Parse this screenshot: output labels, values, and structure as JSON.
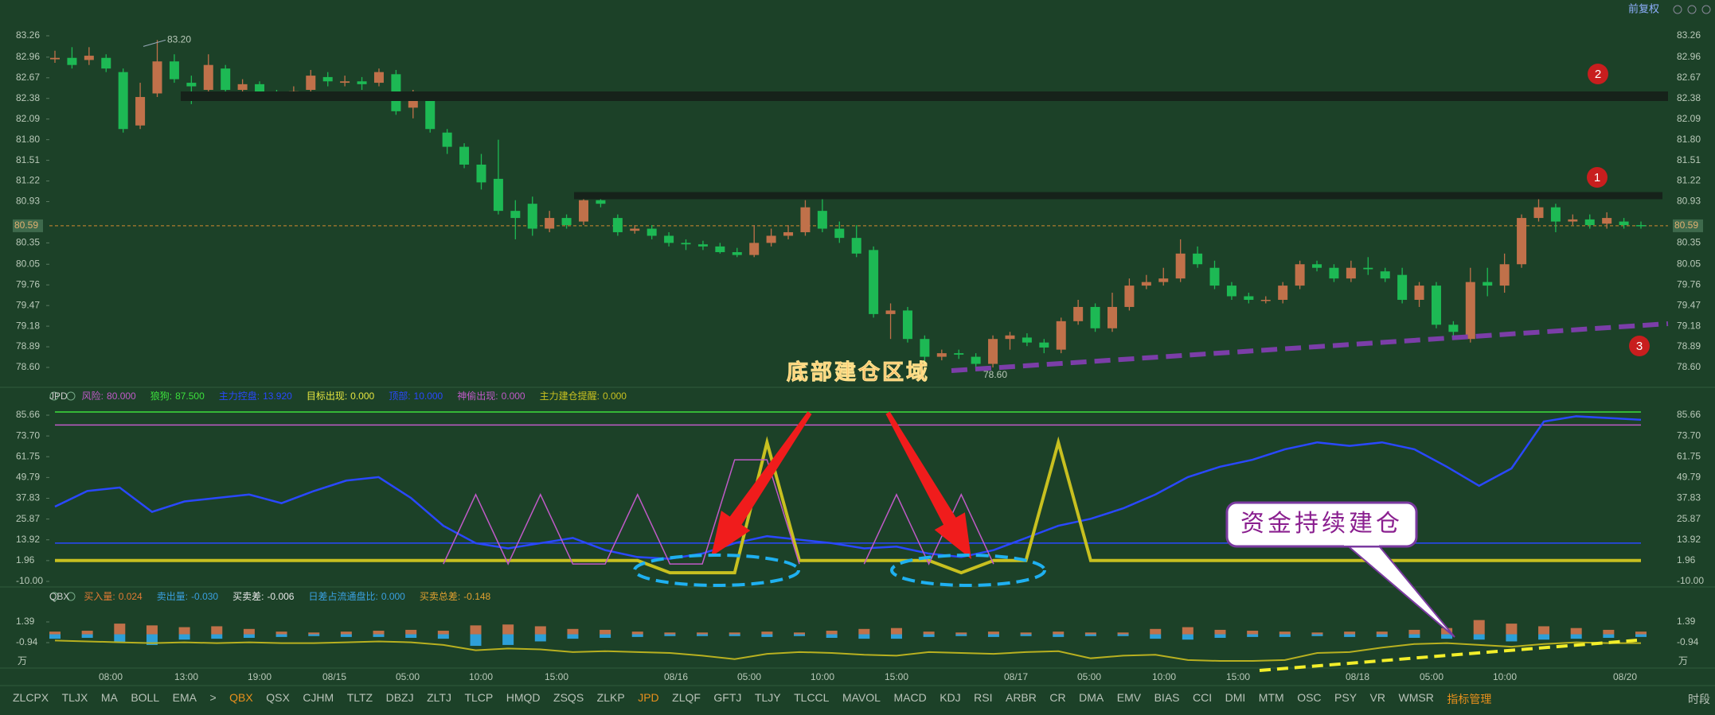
{
  "top_bar": {
    "adjust": "前复权"
  },
  "price_panel": {
    "ylim": [
      78.6,
      83.26
    ],
    "yticks": [
      83.26,
      82.96,
      82.67,
      82.38,
      82.09,
      {
        "value": 81.8,
        "label": "81.80"
      },
      81.51,
      81.22,
      80.93,
      80.35,
      80.05,
      79.76,
      79.47,
      79.18,
      78.89,
      {
        "value": 78.6,
        "label": "78.60"
      }
    ],
    "current_price": 80.59,
    "high_label": {
      "value": 83.2,
      "label": "83.20"
    },
    "low_label": {
      "value": 78.6,
      "label": "78.60"
    },
    "up_color": "#c0714a",
    "down_color": "#1db954",
    "candles": [
      [
        82.93,
        82.95,
        83.05,
        82.88
      ],
      [
        82.95,
        82.85,
        83.1,
        82.8
      ],
      [
        82.92,
        82.98,
        83.1,
        82.85
      ],
      [
        82.95,
        82.8,
        83.0,
        82.75
      ],
      [
        82.75,
        81.95,
        82.8,
        81.9
      ],
      [
        82.0,
        82.4,
        82.6,
        81.95
      ],
      [
        82.45,
        82.9,
        83.2,
        82.4
      ],
      [
        82.9,
        82.65,
        83.0,
        82.6
      ],
      [
        82.6,
        82.55,
        82.7,
        82.3
      ],
      [
        82.5,
        82.85,
        83.0,
        82.4
      ],
      [
        82.8,
        82.5,
        82.85,
        82.4
      ],
      [
        82.5,
        82.58,
        82.65,
        82.45
      ],
      [
        82.58,
        82.45,
        82.62,
        82.38
      ],
      [
        82.42,
        82.4,
        82.5,
        82.35
      ],
      [
        82.4,
        82.48,
        82.55,
        82.35
      ],
      [
        82.5,
        82.7,
        82.78,
        82.45
      ],
      [
        82.68,
        82.62,
        82.75,
        82.55
      ],
      [
        82.6,
        82.62,
        82.7,
        82.55
      ],
      [
        82.62,
        82.58,
        82.68,
        82.5
      ],
      [
        82.6,
        82.75,
        82.8,
        82.55
      ],
      [
        82.72,
        82.2,
        82.78,
        82.15
      ],
      [
        82.25,
        82.4,
        82.5,
        82.1
      ],
      [
        82.4,
        81.95,
        82.45,
        81.9
      ],
      [
        81.9,
        81.7,
        81.95,
        81.6
      ],
      [
        81.7,
        81.45,
        81.75,
        81.4
      ],
      [
        81.45,
        81.2,
        81.6,
        81.1
      ],
      [
        81.25,
        80.8,
        81.8,
        80.75
      ],
      [
        80.8,
        80.7,
        80.95,
        80.4
      ],
      [
        80.9,
        80.55,
        81.0,
        80.45
      ],
      [
        80.55,
        80.7,
        80.8,
        80.5
      ],
      [
        80.7,
        80.6,
        80.75,
        80.55
      ],
      [
        80.65,
        80.95,
        81.0,
        80.6
      ],
      [
        80.95,
        80.9,
        81.0,
        80.85
      ],
      [
        80.7,
        80.5,
        80.75,
        80.45
      ],
      [
        80.52,
        80.55,
        80.6,
        80.48
      ],
      [
        80.55,
        80.45,
        80.6,
        80.4
      ],
      [
        80.45,
        80.35,
        80.5,
        80.3
      ],
      [
        80.35,
        80.33,
        80.4,
        80.25
      ],
      [
        80.33,
        80.3,
        80.38,
        80.25
      ],
      [
        80.3,
        80.22,
        80.35,
        80.2
      ],
      [
        80.22,
        80.18,
        80.28,
        80.15
      ],
      [
        80.18,
        80.35,
        80.6,
        80.15
      ],
      [
        80.35,
        80.45,
        80.55,
        80.3
      ],
      [
        80.45,
        80.5,
        80.6,
        80.4
      ],
      [
        80.5,
        80.85,
        80.95,
        80.45
      ],
      [
        80.8,
        80.55,
        80.98,
        80.5
      ],
      [
        80.55,
        80.42,
        80.65,
        80.35
      ],
      [
        80.42,
        80.2,
        80.6,
        80.15
      ],
      [
        80.25,
        79.35,
        80.3,
        79.3
      ],
      [
        79.35,
        79.4,
        79.5,
        79.0
      ],
      [
        79.4,
        79.0,
        79.45,
        78.95
      ],
      [
        79.0,
        78.75,
        79.05,
        78.68
      ],
      [
        78.75,
        78.8,
        78.85,
        78.7
      ],
      [
        78.8,
        78.78,
        78.85,
        78.72
      ],
      [
        78.75,
        78.65,
        78.8,
        78.6
      ],
      [
        78.65,
        79.0,
        79.05,
        78.6
      ],
      [
        79.0,
        79.05,
        79.1,
        78.85
      ],
      [
        79.02,
        78.95,
        79.08,
        78.9
      ],
      [
        78.95,
        78.88,
        79.0,
        78.8
      ],
      [
        78.85,
        79.25,
        79.3,
        78.8
      ],
      [
        79.25,
        79.45,
        79.55,
        79.2
      ],
      [
        79.45,
        79.15,
        79.5,
        79.1
      ],
      [
        79.15,
        79.45,
        79.65,
        79.1
      ],
      [
        79.45,
        79.75,
        79.85,
        79.4
      ],
      [
        79.75,
        79.8,
        79.9,
        79.7
      ],
      [
        79.8,
        79.85,
        80.0,
        79.75
      ],
      [
        79.85,
        80.2,
        80.4,
        79.8
      ],
      [
        80.2,
        80.05,
        80.3,
        80.0
      ],
      [
        80.0,
        79.75,
        80.1,
        79.7
      ],
      [
        79.75,
        79.6,
        79.8,
        79.55
      ],
      [
        79.6,
        79.55,
        79.65,
        79.5
      ],
      [
        79.55,
        79.55,
        79.6,
        79.5
      ],
      [
        79.55,
        79.75,
        79.8,
        79.5
      ],
      [
        79.75,
        80.05,
        80.1,
        79.7
      ],
      [
        80.05,
        80.0,
        80.1,
        79.95
      ],
      [
        80.0,
        79.85,
        80.05,
        79.8
      ],
      [
        79.85,
        80.0,
        80.1,
        79.8
      ],
      [
        80.0,
        79.98,
        80.15,
        79.9
      ],
      [
        79.95,
        79.85,
        80.0,
        79.8
      ],
      [
        79.9,
        79.55,
        80.0,
        79.5
      ],
      [
        79.55,
        79.75,
        79.8,
        79.45
      ],
      [
        79.75,
        79.2,
        79.8,
        79.15
      ],
      [
        79.2,
        79.1,
        79.25,
        79.0
      ],
      [
        79.0,
        79.8,
        80.0,
        78.95
      ],
      [
        79.8,
        79.75,
        80.0,
        79.6
      ],
      [
        79.75,
        80.05,
        80.2,
        79.65
      ],
      [
        80.05,
        80.7,
        80.75,
        80.0
      ],
      [
        80.7,
        80.85,
        81.0,
        80.65
      ],
      [
        80.85,
        80.65,
        80.9,
        80.5
      ],
      [
        80.65,
        80.68,
        80.75,
        80.6
      ],
      [
        80.68,
        80.6,
        80.75,
        80.55
      ],
      [
        80.62,
        80.7,
        80.78,
        80.55
      ],
      [
        80.65,
        80.6,
        80.7,
        80.55
      ],
      [
        80.6,
        80.59,
        80.65,
        80.55
      ]
    ]
  },
  "jpd_panel": {
    "name": "JPD",
    "ylim": [
      -10,
      85.66
    ],
    "yticks": [
      85.66,
      {
        "value": 73.7,
        "label": "73.70"
      },
      61.75,
      49.79,
      37.83,
      25.87,
      13.92,
      1.96,
      {
        "value": -10,
        "label": "-10.00"
      }
    ],
    "header": [
      {
        "name": "风险:",
        "value": "80.000",
        "color": "#c05ac8"
      },
      {
        "name": "狼狗:",
        "value": "87.500",
        "color": "#3ce03c"
      },
      {
        "name": "主力控盘:",
        "value": "13.920",
        "color": "#2a48ff"
      },
      {
        "name": "目标出现:",
        "value": "0.000",
        "color": "#e6e640"
      },
      {
        "name": "顶部:",
        "value": "10.000",
        "color": "#2a48ff"
      },
      {
        "name": "神偷出现:",
        "value": "0.000",
        "color": "#c05ac8"
      },
      {
        "name": "主力建仓提醒:",
        "value": "0.000",
        "color": "#c8c020"
      }
    ],
    "levels": [
      {
        "value": 87.5,
        "color": "#3ce03c"
      },
      {
        "value": 80,
        "color": "#c05ac8"
      },
      {
        "value": 12,
        "color": "#2a48ff"
      }
    ],
    "series": [
      {
        "color": "#2a48ff",
        "width": 2.5,
        "values": [
          33,
          42,
          44,
          30,
          36,
          38,
          40,
          35,
          42,
          48,
          50,
          38,
          22,
          12,
          9,
          12,
          15,
          8,
          4,
          3,
          6,
          12,
          16,
          14,
          12,
          9,
          10,
          6,
          4,
          8,
          15,
          22,
          26,
          32,
          40,
          50,
          56,
          60,
          66,
          70,
          68,
          70,
          66,
          56,
          45,
          55,
          82,
          85,
          84,
          83
        ]
      },
      {
        "color": "#c8c020",
        "width": 4,
        "values": [
          2,
          2,
          2,
          2,
          2,
          2,
          2,
          2,
          2,
          2,
          2,
          2,
          2,
          2,
          2,
          2,
          2,
          2,
          2,
          -5,
          -5,
          -5,
          70,
          2,
          2,
          2,
          2,
          2,
          -5,
          2,
          2,
          70,
          2,
          2,
          2,
          2,
          2,
          2,
          2,
          2,
          2,
          2,
          2,
          2,
          2,
          2,
          2,
          2,
          2,
          2
        ]
      },
      {
        "color": "#c05ac8",
        "width": 1.5,
        "values": [
          null,
          null,
          null,
          null,
          null,
          null,
          null,
          null,
          null,
          null,
          null,
          null,
          0,
          40,
          0,
          40,
          0,
          0,
          40,
          0,
          0,
          60,
          60,
          0,
          null,
          0,
          40,
          0,
          40,
          0,
          null,
          null,
          null,
          null,
          null,
          null,
          null,
          null,
          null,
          null,
          null,
          null,
          null,
          null,
          null,
          null,
          null,
          null,
          null,
          null
        ]
      }
    ]
  },
  "qbx_panel": {
    "name": "QBX",
    "ylim": [
      -3.4,
      1.8
    ],
    "yticks": [
      1.39,
      -0.94
    ],
    "unit": "万",
    "header": [
      {
        "name": "买入量:",
        "value": "0.024",
        "color": "#e07a34"
      },
      {
        "name": "卖出量:",
        "value": "-0.030",
        "color": "#3aa0e0"
      },
      {
        "name": "买卖差:",
        "value": "-0.006",
        "color": "#e8e8e8"
      },
      {
        "name": "日差占流通盘比:",
        "value": "0.000",
        "color": "#3aa0e0"
      },
      {
        "name": "买卖总差:",
        "value": "-0.148",
        "color": "#e0a030"
      }
    ],
    "buy": {
      "color": "#c0714a",
      "values": [
        0.3,
        0.4,
        1.2,
        1.0,
        0.8,
        0.9,
        0.6,
        0.3,
        0.2,
        0.3,
        0.4,
        0.5,
        0.4,
        1.0,
        1.1,
        0.9,
        0.6,
        0.5,
        0.3,
        0.2,
        0.2,
        0.2,
        0.3,
        0.2,
        0.4,
        0.6,
        0.7,
        0.3,
        0.2,
        0.3,
        0.2,
        0.3,
        0.2,
        0.2,
        0.6,
        0.8,
        0.5,
        0.4,
        0.3,
        0.2,
        0.3,
        0.3,
        0.5,
        0.7,
        1.6,
        1.2,
        0.9,
        0.7,
        0.5,
        0.3
      ]
    },
    "sell": {
      "color": "#2e9fd8",
      "values": [
        -0.5,
        -0.4,
        -0.9,
        -1.2,
        -0.6,
        -0.5,
        -0.4,
        -0.3,
        -0.2,
        -0.3,
        -0.3,
        -0.4,
        -0.5,
        -1.3,
        -1.2,
        -0.8,
        -0.5,
        -0.4,
        -0.3,
        -0.2,
        -0.2,
        -0.2,
        -0.3,
        -0.2,
        -0.4,
        -0.5,
        -0.5,
        -0.3,
        -0.2,
        -0.3,
        -0.2,
        -0.3,
        -0.2,
        -0.2,
        -0.5,
        -0.6,
        -0.4,
        -0.3,
        -0.3,
        -0.2,
        -0.3,
        -0.3,
        -0.4,
        -0.5,
        -0.6,
        -0.8,
        -0.6,
        -0.5,
        -0.4,
        -0.3
      ]
    },
    "line": {
      "color": "#b8b020",
      "values": [
        -0.7,
        -0.8,
        -0.9,
        -1.0,
        -0.9,
        -1.0,
        -0.9,
        -1.0,
        -1.0,
        -0.9,
        -0.8,
        -0.9,
        -1.2,
        -1.8,
        -1.6,
        -1.7,
        -2.0,
        -1.9,
        -2.0,
        -2.1,
        -2.4,
        -2.8,
        -2.2,
        -2.0,
        -2.1,
        -2.3,
        -2.4,
        -2.0,
        -2.1,
        -2.2,
        -2.0,
        -1.9,
        -2.7,
        -2.4,
        -2.3,
        -2.9,
        -3.0,
        -3.0,
        -2.9,
        -2.1,
        -2.0,
        -1.5,
        -1.1,
        -1.0,
        -1.2,
        -1.4,
        -1.1,
        -0.9,
        -1.0,
        -1.0
      ]
    }
  },
  "x_axis": [
    "08:00",
    "13:00",
    "19:00",
    "08/15",
    "05:00",
    "10:00",
    "15:00",
    "08/16",
    "05:00",
    "10:00",
    "15:00",
    "08/17",
    "05:00",
    "10:00",
    "15:00",
    "08/18",
    "05:00",
    "10:00",
    "08/20"
  ],
  "annotations": {
    "bottom_zone": "底部建仓区域",
    "callout": "资金持续建仓",
    "marker_1": "1",
    "marker_2": "2",
    "marker_3": "3"
  },
  "toolbar": {
    "items": [
      "ZLCPX",
      "TLJX",
      "MA",
      "BOLL",
      "EMA",
      ">",
      "QBX",
      "QSX",
      "CJHM",
      "TLTZ",
      "DBZJ",
      "ZLTJ",
      "TLCP",
      "HMQD",
      "ZSQS",
      "ZLKP",
      "JPD",
      "ZLQF",
      "GFTJ",
      "TLJY",
      "TLCCL",
      "MAVOL",
      "MACD",
      "KDJ",
      "RSI",
      "ARBR",
      "CR",
      "DMA",
      "EMV",
      "BIAS",
      "CCI",
      "DMI",
      "MTM",
      "OSC",
      "PSY",
      "VR",
      "WMSR",
      "指标管理"
    ],
    "period": "时段"
  }
}
